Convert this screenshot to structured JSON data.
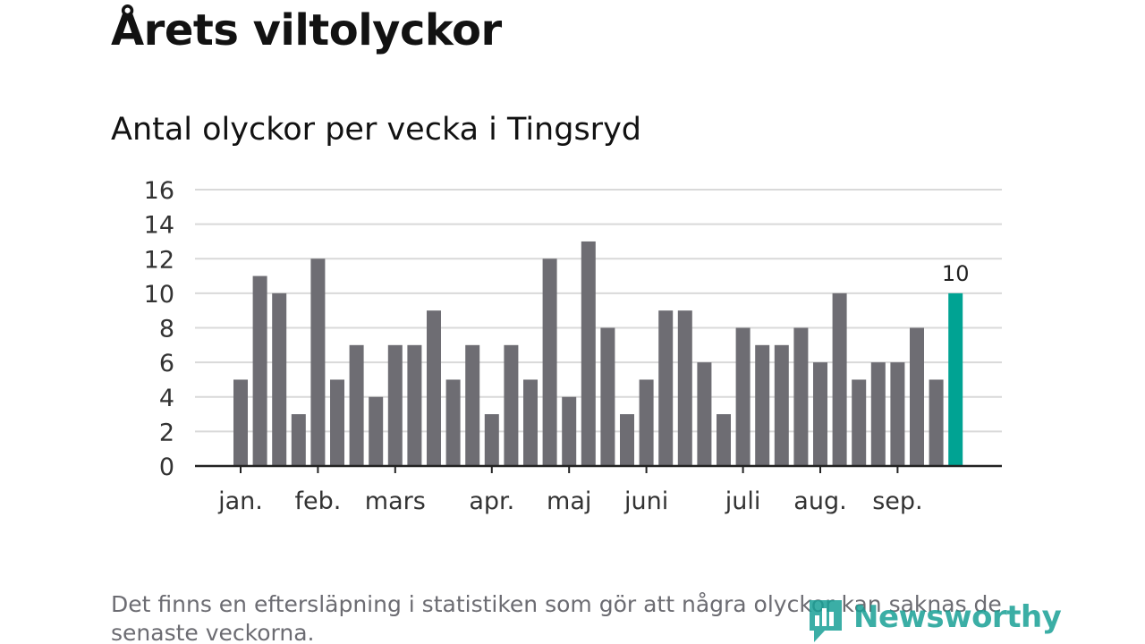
{
  "header": {
    "title": "Årets viltolyckor",
    "subtitle": "Antal olyckor per vecka i Tingsryd"
  },
  "footer": {
    "note": "Det finns en eftersläpning i statistiken som gör att några olyckor kan saknas de senaste veckorna.",
    "logo_text": "Newsworthy"
  },
  "colors": {
    "bar": "#6e6d73",
    "highlight": "#00a393",
    "grid": "#d9d9d9",
    "axis": "#222222",
    "logo": "#19a096"
  },
  "chart_data": {
    "type": "bar",
    "title": "Antal olyckor per vecka i Tingsryd",
    "xlabel": "",
    "ylabel": "",
    "ylim": [
      0,
      16
    ],
    "yticks": [
      0,
      2,
      4,
      6,
      8,
      10,
      12,
      14,
      16
    ],
    "grid": true,
    "values": [
      5,
      11,
      10,
      3,
      12,
      5,
      7,
      4,
      7,
      7,
      9,
      5,
      7,
      3,
      7,
      5,
      12,
      4,
      13,
      8,
      3,
      5,
      9,
      9,
      6,
      3,
      8,
      7,
      7,
      8,
      6,
      10,
      5,
      6,
      6,
      8,
      5,
      10
    ],
    "highlight_last": true,
    "annotations": [
      {
        "index": 37,
        "text": "10"
      }
    ],
    "month_labels": [
      {
        "label": "jan.",
        "week": 0
      },
      {
        "label": "feb.",
        "week": 4
      },
      {
        "label": "mars",
        "week": 8
      },
      {
        "label": "apr.",
        "week": 13
      },
      {
        "label": "maj",
        "week": 17
      },
      {
        "label": "juni",
        "week": 21
      },
      {
        "label": "juli",
        "week": 26
      },
      {
        "label": "aug.",
        "week": 30
      },
      {
        "label": "sep.",
        "week": 34
      }
    ]
  }
}
